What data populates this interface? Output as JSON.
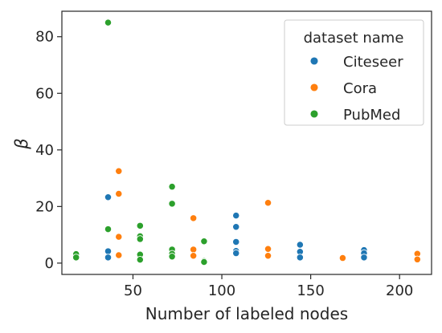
{
  "chart_data": {
    "type": "scatter",
    "title": "",
    "xlabel": "Number of labeled nodes",
    "ylabel": "β",
    "xlim": [
      10,
      218
    ],
    "ylim": [
      -4,
      89
    ],
    "xticks": [
      50,
      100,
      150,
      200
    ],
    "yticks": [
      0,
      20,
      40,
      60,
      80
    ],
    "grid": false,
    "legend": {
      "title": "dataset name",
      "placement": "top-right"
    },
    "series": [
      {
        "name": "Citeseer",
        "color": "#1f77b4",
        "points": [
          [
            36,
            23.3
          ],
          [
            36,
            4.2
          ],
          [
            36,
            2.0
          ],
          [
            108,
            16.8
          ],
          [
            108,
            12.8
          ],
          [
            108,
            7.5
          ],
          [
            108,
            4.3
          ],
          [
            108,
            3.5
          ],
          [
            144,
            6.5
          ],
          [
            144,
            4.0
          ],
          [
            144,
            2.0
          ],
          [
            180,
            4.6
          ],
          [
            180,
            3.5
          ],
          [
            180,
            2.0
          ]
        ]
      },
      {
        "name": "Cora",
        "color": "#ff7f0e",
        "points": [
          [
            42,
            32.5
          ],
          [
            42,
            24.5
          ],
          [
            42,
            9.3
          ],
          [
            42,
            2.8
          ],
          [
            84,
            15.9
          ],
          [
            84,
            4.8
          ],
          [
            84,
            2.6
          ],
          [
            126,
            21.3
          ],
          [
            126,
            5.0
          ],
          [
            126,
            2.6
          ],
          [
            168,
            1.8
          ],
          [
            210,
            3.3
          ],
          [
            210,
            1.3
          ]
        ]
      },
      {
        "name": "PubMed",
        "color": "#2ca02c",
        "points": [
          [
            18,
            3.2
          ],
          [
            18,
            2.0
          ],
          [
            36,
            85.0
          ],
          [
            36,
            12.0
          ],
          [
            54,
            13.2
          ],
          [
            54,
            9.5
          ],
          [
            54,
            8.5
          ],
          [
            54,
            3.0
          ],
          [
            54,
            1.2
          ],
          [
            72,
            27.0
          ],
          [
            72,
            21.0
          ],
          [
            72,
            4.8
          ],
          [
            72,
            3.3
          ],
          [
            72,
            2.3
          ],
          [
            90,
            7.7
          ],
          [
            90,
            0.7
          ],
          [
            90,
            0.4
          ]
        ]
      }
    ]
  }
}
